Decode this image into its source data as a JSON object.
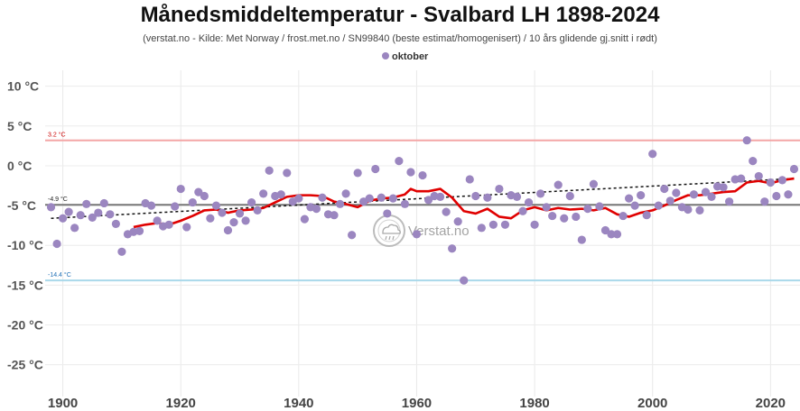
{
  "chart_data": {
    "type": "scatter",
    "title": "Månedsmiddeltemperatur - Svalbard LH 1898-2024",
    "subtitle": "(verstat.no - Kilde: Met Norway / frost.met.no / SN99840 (beste estimat/homogenisert) / 10 års glidende gj.snitt i rødt)",
    "legend_position": "top-center",
    "grid": true,
    "xlim": [
      1897,
      2025
    ],
    "ylim": [
      -29,
      12
    ],
    "x_ticks": [
      1900,
      1920,
      1940,
      1960,
      1980,
      2000,
      2020
    ],
    "y_ticks": [
      {
        "value": 10,
        "label": "10 °C"
      },
      {
        "value": 5,
        "label": "5 °C"
      },
      {
        "value": 0,
        "label": "0 °C"
      },
      {
        "value": -5,
        "label": "-5 °C"
      },
      {
        "value": -10,
        "label": "-10 °C"
      },
      {
        "value": -15,
        "label": "-15 °C"
      },
      {
        "value": -20,
        "label": "-20 °C"
      },
      {
        "value": -25,
        "label": "-25 °C"
      }
    ],
    "reference_lines": [
      {
        "value": 3.2,
        "label": "3.2 °C",
        "color": "#f4a6a6",
        "label_color": "#cc0000"
      },
      {
        "value": -4.9,
        "label": "-4.9 °C",
        "color": "#777777",
        "label_color": "#222222"
      },
      {
        "value": -14.4,
        "label": "-14.4 °C",
        "color": "#a9d8ea",
        "label_color": "#1f6fb5"
      }
    ],
    "series": [
      {
        "name": "oktober",
        "color": "#9b86c0",
        "points": [
          [
            1898,
            -5.2
          ],
          [
            1899,
            -9.8
          ],
          [
            1900,
            -6.6
          ],
          [
            1901,
            -5.8
          ],
          [
            1902,
            -7.8
          ],
          [
            1903,
            -6.2
          ],
          [
            1904,
            -4.8
          ],
          [
            1905,
            -6.5
          ],
          [
            1906,
            -5.9
          ],
          [
            1907,
            -4.7
          ],
          [
            1908,
            -6.1
          ],
          [
            1909,
            -7.3
          ],
          [
            1910,
            -10.8
          ],
          [
            1911,
            -8.6
          ],
          [
            1912,
            -8.3
          ],
          [
            1913,
            -8.2
          ],
          [
            1914,
            -4.7
          ],
          [
            1915,
            -5.0
          ],
          [
            1916,
            -6.9
          ],
          [
            1917,
            -7.6
          ],
          [
            1918,
            -7.4
          ],
          [
            1919,
            -5.1
          ],
          [
            1920,
            -2.9
          ],
          [
            1921,
            -7.7
          ],
          [
            1922,
            -4.6
          ],
          [
            1923,
            -3.3
          ],
          [
            1924,
            -3.8
          ],
          [
            1925,
            -6.6
          ],
          [
            1926,
            -5.0
          ],
          [
            1927,
            -5.9
          ],
          [
            1928,
            -8.1
          ],
          [
            1929,
            -7.1
          ],
          [
            1930,
            -6.0
          ],
          [
            1931,
            -6.9
          ],
          [
            1932,
            -4.6
          ],
          [
            1933,
            -5.6
          ],
          [
            1934,
            -3.5
          ],
          [
            1935,
            -0.6
          ],
          [
            1936,
            -3.8
          ],
          [
            1937,
            -3.6
          ],
          [
            1938,
            -0.9
          ],
          [
            1939,
            -4.5
          ],
          [
            1940,
            -4.1
          ],
          [
            1941,
            -6.7
          ],
          [
            1942,
            -5.2
          ],
          [
            1943,
            -5.4
          ],
          [
            1944,
            -4.0
          ],
          [
            1945,
            -6.1
          ],
          [
            1946,
            -6.2
          ],
          [
            1947,
            -4.8
          ],
          [
            1948,
            -3.5
          ],
          [
            1949,
            -8.7
          ],
          [
            1950,
            -0.9
          ],
          [
            1951,
            -4.5
          ],
          [
            1952,
            -4.1
          ],
          [
            1953,
            -0.4
          ],
          [
            1954,
            -4.0
          ],
          [
            1955,
            -6.0
          ],
          [
            1956,
            -4.1
          ],
          [
            1957,
            0.6
          ],
          [
            1958,
            -4.8
          ],
          [
            1959,
            -0.8
          ],
          [
            1960,
            -8.6
          ],
          [
            1961,
            -1.2
          ],
          [
            1962,
            -4.3
          ],
          [
            1963,
            -3.8
          ],
          [
            1964,
            -3.9
          ],
          [
            1965,
            -5.8
          ],
          [
            1966,
            -10.4
          ],
          [
            1967,
            -7.0
          ],
          [
            1968,
            -14.4
          ],
          [
            1969,
            -1.7
          ],
          [
            1970,
            -3.8
          ],
          [
            1971,
            -7.8
          ],
          [
            1972,
            -4.0
          ],
          [
            1973,
            -7.4
          ],
          [
            1974,
            -2.9
          ],
          [
            1975,
            -7.4
          ],
          [
            1976,
            -3.7
          ],
          [
            1977,
            -3.9
          ],
          [
            1978,
            -5.7
          ],
          [
            1979,
            -4.6
          ],
          [
            1980,
            -7.4
          ],
          [
            1981,
            -3.5
          ],
          [
            1982,
            -5.2
          ],
          [
            1983,
            -6.3
          ],
          [
            1984,
            -2.4
          ],
          [
            1985,
            -6.6
          ],
          [
            1986,
            -3.8
          ],
          [
            1987,
            -6.4
          ],
          [
            1988,
            -9.3
          ],
          [
            1989,
            -5.4
          ],
          [
            1990,
            -2.3
          ],
          [
            1991,
            -5.1
          ],
          [
            1992,
            -8.1
          ],
          [
            1993,
            -8.6
          ],
          [
            1994,
            -8.6
          ],
          [
            1995,
            -6.3
          ],
          [
            1996,
            -4.1
          ],
          [
            1997,
            -5.0
          ],
          [
            1998,
            -3.7
          ],
          [
            1999,
            -6.2
          ],
          [
            2000,
            1.5
          ],
          [
            2001,
            -5.0
          ],
          [
            2002,
            -2.9
          ],
          [
            2003,
            -4.4
          ],
          [
            2004,
            -3.4
          ],
          [
            2005,
            -5.2
          ],
          [
            2006,
            -5.5
          ],
          [
            2007,
            -3.6
          ],
          [
            2008,
            -5.6
          ],
          [
            2009,
            -3.3
          ],
          [
            2010,
            -3.9
          ],
          [
            2011,
            -2.6
          ],
          [
            2012,
            -2.7
          ],
          [
            2013,
            -4.5
          ],
          [
            2014,
            -1.7
          ],
          [
            2015,
            -1.6
          ],
          [
            2016,
            3.2
          ],
          [
            2017,
            0.6
          ],
          [
            2018,
            -1.3
          ],
          [
            2019,
            -4.5
          ],
          [
            2020,
            -2.1
          ],
          [
            2021,
            -3.8
          ],
          [
            2022,
            -1.8
          ],
          [
            2023,
            -3.6
          ],
          [
            2024,
            -0.4
          ]
        ]
      },
      {
        "name": "",
        "type": "line",
        "color": "#e00000",
        "points": [
          [
            1912,
            -7.7
          ],
          [
            1914,
            -7.4
          ],
          [
            1916,
            -7.2
          ],
          [
            1918,
            -7.4
          ],
          [
            1920,
            -6.9
          ],
          [
            1922,
            -6.3
          ],
          [
            1924,
            -5.6
          ],
          [
            1926,
            -5.5
          ],
          [
            1928,
            -5.9
          ],
          [
            1930,
            -5.6
          ],
          [
            1932,
            -5.5
          ],
          [
            1934,
            -5.3
          ],
          [
            1936,
            -4.6
          ],
          [
            1938,
            -3.9
          ],
          [
            1940,
            -3.7
          ],
          [
            1942,
            -3.7
          ],
          [
            1944,
            -3.8
          ],
          [
            1946,
            -4.5
          ],
          [
            1948,
            -4.8
          ],
          [
            1950,
            -5.2
          ],
          [
            1952,
            -4.4
          ],
          [
            1954,
            -4.1
          ],
          [
            1956,
            -4.0
          ],
          [
            1958,
            -3.6
          ],
          [
            1959,
            -2.9
          ],
          [
            1960,
            -3.2
          ],
          [
            1962,
            -3.2
          ],
          [
            1964,
            -2.9
          ],
          [
            1966,
            -4.0
          ],
          [
            1968,
            -5.7
          ],
          [
            1970,
            -6.0
          ],
          [
            1972,
            -5.4
          ],
          [
            1974,
            -6.4
          ],
          [
            1976,
            -6.6
          ],
          [
            1978,
            -5.6
          ],
          [
            1980,
            -5.2
          ],
          [
            1982,
            -5.6
          ],
          [
            1984,
            -5.3
          ],
          [
            1986,
            -5.5
          ],
          [
            1988,
            -5.4
          ],
          [
            1990,
            -5.6
          ],
          [
            1992,
            -5.3
          ],
          [
            1994,
            -6.1
          ],
          [
            1996,
            -6.4
          ],
          [
            1998,
            -5.9
          ],
          [
            2000,
            -5.6
          ],
          [
            2002,
            -5.0
          ],
          [
            2004,
            -4.3
          ],
          [
            2006,
            -3.7
          ],
          [
            2008,
            -3.7
          ],
          [
            2010,
            -3.5
          ],
          [
            2012,
            -3.3
          ],
          [
            2014,
            -3.2
          ],
          [
            2016,
            -2.1
          ],
          [
            2018,
            -1.9
          ],
          [
            2020,
            -2.2
          ],
          [
            2022,
            -1.8
          ],
          [
            2024,
            -1.6
          ]
        ]
      },
      {
        "name": "",
        "type": "trend",
        "color": "#111111",
        "points": [
          [
            1898,
            -6.6
          ],
          [
            2024,
            -1.6
          ]
        ]
      }
    ]
  },
  "watermark": {
    "text": "Verstat.no"
  }
}
